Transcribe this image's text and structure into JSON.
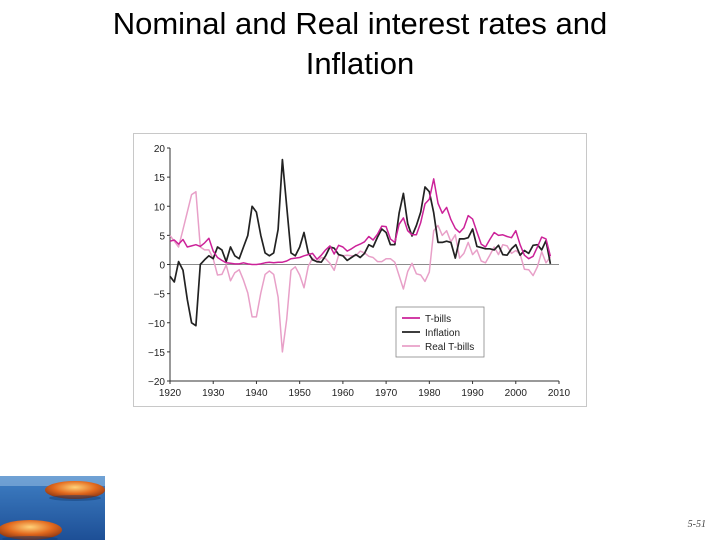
{
  "slide": {
    "title_line1": "Nominal and Real interest rates and",
    "title_line2": "Inflation",
    "page_number": "5-51"
  },
  "chart_data": {
    "type": "line",
    "title": "Nominal and Real interest rates and Inflation",
    "xlabel": "",
    "ylabel": "",
    "xlim": [
      1920,
      2010
    ],
    "ylim": [
      -20,
      20
    ],
    "x_ticks": [
      "1920",
      "1930",
      "1940",
      "1950",
      "1960",
      "1970",
      "1980",
      "1990",
      "2000",
      "2010"
    ],
    "y_ticks": [
      "20",
      "15",
      "10",
      "5",
      "0",
      "−5",
      "−10",
      "−15",
      "−20"
    ],
    "legend_position": "bottom-center",
    "grid": false,
    "series": [
      {
        "name": "T-bills",
        "color": "#cc2299",
        "x": [
          1920,
          1921,
          1922,
          1923,
          1924,
          1925,
          1926,
          1927,
          1928,
          1929,
          1930,
          1931,
          1932,
          1933,
          1934,
          1935,
          1936,
          1937,
          1938,
          1939,
          1940,
          1941,
          1942,
          1943,
          1944,
          1945,
          1946,
          1947,
          1948,
          1949,
          1950,
          1951,
          1952,
          1953,
          1954,
          1955,
          1956,
          1957,
          1958,
          1959,
          1960,
          1961,
          1962,
          1963,
          1964,
          1965,
          1966,
          1967,
          1968,
          1969,
          1970,
          1971,
          1972,
          1973,
          1974,
          1975,
          1976,
          1977,
          1978,
          1979,
          1980,
          1981,
          1982,
          1983,
          1984,
          1985,
          1986,
          1987,
          1988,
          1989,
          1990,
          1991,
          1992,
          1993,
          1994,
          1995,
          1996,
          1997,
          1998,
          1999,
          2000,
          2001,
          2002,
          2003,
          2004,
          2005,
          2006,
          2007,
          2008
        ],
        "values": [
          4.0,
          4.2,
          3.5,
          4.3,
          3.0,
          3.2,
          3.4,
          3.1,
          3.7,
          4.5,
          2.3,
          1.2,
          0.7,
          0.3,
          0.2,
          0.1,
          0.1,
          0.3,
          0.1,
          0.0,
          0.0,
          0.1,
          0.3,
          0.4,
          0.3,
          0.4,
          0.4,
          0.6,
          1.0,
          1.1,
          1.2,
          1.5,
          1.7,
          1.9,
          0.9,
          1.6,
          2.5,
          3.2,
          1.8,
          3.3,
          3.0,
          2.3,
          2.7,
          3.2,
          3.5,
          3.9,
          4.8,
          4.2,
          5.2,
          6.6,
          6.5,
          4.4,
          3.8,
          6.9,
          8.0,
          5.8,
          5.1,
          5.1,
          7.2,
          10.4,
          11.2,
          14.7,
          10.5,
          8.8,
          9.8,
          7.7,
          6.2,
          5.5,
          6.3,
          8.4,
          7.8,
          5.6,
          3.5,
          3.0,
          4.3,
          5.5,
          5.0,
          5.1,
          4.8,
          4.6,
          5.8,
          3.4,
          1.6,
          1.0,
          1.4,
          3.0,
          4.7,
          4.4,
          1.4
        ]
      },
      {
        "name": "Inflation",
        "color": "#222222",
        "x": [
          1920,
          1921,
          1922,
          1923,
          1924,
          1925,
          1926,
          1927,
          1928,
          1929,
          1930,
          1931,
          1932,
          1933,
          1934,
          1935,
          1936,
          1937,
          1938,
          1939,
          1940,
          1941,
          1942,
          1943,
          1944,
          1945,
          1946,
          1947,
          1948,
          1949,
          1950,
          1951,
          1952,
          1953,
          1954,
          1955,
          1956,
          1957,
          1958,
          1959,
          1960,
          1961,
          1962,
          1963,
          1964,
          1965,
          1966,
          1967,
          1968,
          1969,
          1970,
          1971,
          1972,
          1973,
          1974,
          1975,
          1976,
          1977,
          1978,
          1979,
          1980,
          1981,
          1982,
          1983,
          1984,
          1985,
          1986,
          1987,
          1988,
          1989,
          1990,
          1991,
          1992,
          1993,
          1994,
          1995,
          1996,
          1997,
          1998,
          1999,
          2000,
          2001,
          2002,
          2003,
          2004,
          2005,
          2006,
          2007,
          2008
        ],
        "values": [
          -2.0,
          -3.0,
          0.5,
          -1.0,
          -6.0,
          -10.0,
          -10.5,
          0.0,
          0.8,
          1.5,
          1.0,
          3.0,
          2.5,
          0.5,
          3.0,
          1.5,
          1.0,
          3.0,
          5.0,
          10.0,
          9.0,
          5.0,
          2.0,
          1.5,
          2.0,
          6.0,
          18.0,
          10.0,
          2.0,
          1.5,
          3.0,
          5.5,
          2.0,
          0.8,
          0.5,
          0.4,
          1.5,
          3.0,
          2.8,
          1.7,
          1.5,
          0.7,
          1.2,
          1.7,
          1.2,
          1.9,
          3.4,
          3.0,
          4.7,
          6.1,
          5.5,
          3.4,
          3.4,
          8.8,
          12.2,
          7.0,
          4.9,
          6.7,
          9.0,
          13.3,
          12.5,
          8.9,
          3.8,
          3.8,
          4.0,
          3.8,
          1.1,
          4.4,
          4.4,
          4.6,
          6.1,
          3.1,
          2.9,
          2.7,
          2.7,
          2.5,
          3.3,
          1.7,
          1.6,
          2.7,
          3.4,
          1.6,
          2.4,
          1.9,
          3.3,
          3.4,
          2.5,
          4.1,
          0.1
        ]
      },
      {
        "name": "Real T-bills",
        "color": "#e8a0c8",
        "x": [
          1920,
          1921,
          1922,
          1923,
          1924,
          1925,
          1926,
          1927,
          1928,
          1929,
          1930,
          1931,
          1932,
          1933,
          1934,
          1935,
          1936,
          1937,
          1938,
          1939,
          1940,
          1941,
          1942,
          1943,
          1944,
          1945,
          1946,
          1947,
          1948,
          1949,
          1950,
          1951,
          1952,
          1953,
          1954,
          1955,
          1956,
          1957,
          1958,
          1959,
          1960,
          1961,
          1962,
          1963,
          1964,
          1965,
          1966,
          1967,
          1968,
          1969,
          1970,
          1971,
          1972,
          1973,
          1974,
          1975,
          1976,
          1977,
          1978,
          1979,
          1980,
          1981,
          1982,
          1983,
          1984,
          1985,
          1986,
          1987,
          1988,
          1989,
          1990,
          1991,
          1992,
          1993,
          1994,
          1995,
          1996,
          1997,
          1998,
          1999,
          2000,
          2001,
          2002,
          2003,
          2004,
          2005,
          2006,
          2007,
          2008
        ],
        "values": [
          5.0,
          4.0,
          3.0,
          6.0,
          9.0,
          12.0,
          12.5,
          3.0,
          2.5,
          2.5,
          1.0,
          -1.8,
          -1.7,
          -0.1,
          -2.8,
          -1.4,
          -0.9,
          -2.7,
          -4.9,
          -9.0,
          -9.0,
          -4.9,
          -1.7,
          -1.1,
          -1.7,
          -5.6,
          -15.0,
          -9.4,
          -1.0,
          -0.4,
          -1.8,
          -4.0,
          -0.3,
          1.1,
          0.4,
          1.2,
          1.0,
          0.2,
          -1.0,
          1.6,
          1.5,
          1.6,
          1.5,
          1.5,
          2.3,
          2.0,
          1.4,
          1.2,
          0.5,
          0.5,
          1.0,
          1.0,
          0.4,
          -1.9,
          -4.2,
          -1.2,
          0.2,
          -1.6,
          -1.8,
          -2.9,
          -1.3,
          5.8,
          6.7,
          5.0,
          5.8,
          3.9,
          5.1,
          1.1,
          1.9,
          3.8,
          1.7,
          2.5,
          0.6,
          0.3,
          1.6,
          3.0,
          1.7,
          3.4,
          3.2,
          1.9,
          2.4,
          1.8,
          -0.8,
          -0.9,
          -1.9,
          -0.4,
          2.2,
          0.3,
          1.3
        ]
      }
    ]
  }
}
